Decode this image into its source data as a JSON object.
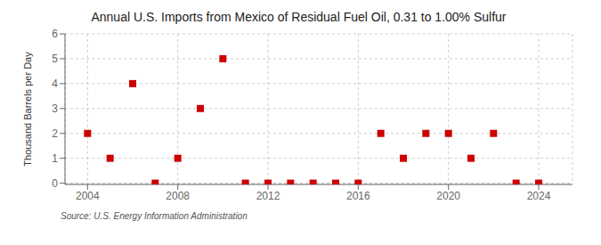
{
  "chart_data": {
    "type": "scatter",
    "title": "Annual U.S. Imports from Mexico of Residual Fuel Oil, 0.31 to 1.00% Sulfur",
    "ylabel": "Thousand Barrels per Day",
    "annotations": [
      "Source: U.S. Energy Information Administration"
    ],
    "x": [
      2004,
      2005,
      2006,
      2007,
      2008,
      2009,
      2010,
      2011,
      2012,
      2013,
      2014,
      2015,
      2016,
      2017,
      2018,
      2019,
      2020,
      2021,
      2022,
      2023,
      2024
    ],
    "values": [
      2,
      1,
      4,
      0,
      1,
      3,
      5,
      0,
      0,
      0,
      0,
      0,
      0,
      2,
      1,
      2,
      2,
      1,
      2,
      0,
      0
    ],
    "color": "#cc0000",
    "marker": "square",
    "xlim": [
      2003.0,
      2025.5
    ],
    "ylim": [
      -0.05,
      6
    ],
    "xticks": [
      2004,
      2008,
      2012,
      2016,
      2020,
      2024
    ],
    "yticks": [
      0,
      1,
      2,
      3,
      4,
      5,
      6
    ],
    "grid": true
  }
}
